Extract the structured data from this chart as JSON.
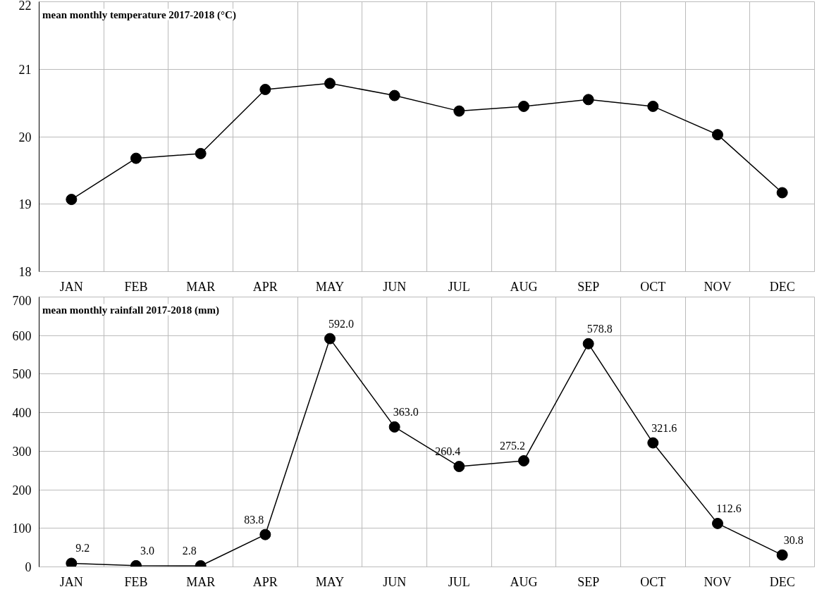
{
  "chart_data": [
    {
      "type": "line",
      "title": "mean monthly temperature 2017-2018 (°C)",
      "categories": [
        "JAN",
        "FEB",
        "MAR",
        "APR",
        "MAY",
        "JUN",
        "JUL",
        "AUG",
        "SEP",
        "OCT",
        "NOV",
        "DEC"
      ],
      "series": [
        {
          "color": "#000000",
          "values": [
            19.07,
            19.68,
            19.75,
            20.7,
            20.79,
            20.61,
            20.38,
            20.45,
            20.55,
            20.45,
            20.03,
            19.17
          ]
        }
      ],
      "ylim": [
        18,
        22
      ],
      "yticks": [
        18,
        19,
        20,
        21,
        22
      ],
      "grid": true,
      "marker": "circle",
      "line_style": "solid"
    },
    {
      "type": "line",
      "title": "mean monthly rainfall 2017-2018 (mm)",
      "categories": [
        "JAN",
        "FEB",
        "MAR",
        "APR",
        "MAY",
        "JUN",
        "JUL",
        "AUG",
        "SEP",
        "OCT",
        "NOV",
        "DEC"
      ],
      "series": [
        {
          "color": "#000000",
          "values": [
            9.2,
            3.0,
            2.8,
            83.8,
            592.0,
            363.0,
            260.4,
            275.2,
            578.8,
            321.6,
            112.6,
            30.8
          ],
          "value_labels": [
            "9.2",
            "3.0",
            "2.8",
            "83.8",
            "592.0",
            "363.0",
            "260.4",
            "275.2",
            "578.8",
            "321.6",
            "112.6",
            "30.8"
          ]
        }
      ],
      "ylim": [
        0,
        700
      ],
      "yticks": [
        0,
        100,
        200,
        300,
        400,
        500,
        600,
        700
      ],
      "grid": true,
      "marker": "circle",
      "line_style": "solid"
    }
  ]
}
